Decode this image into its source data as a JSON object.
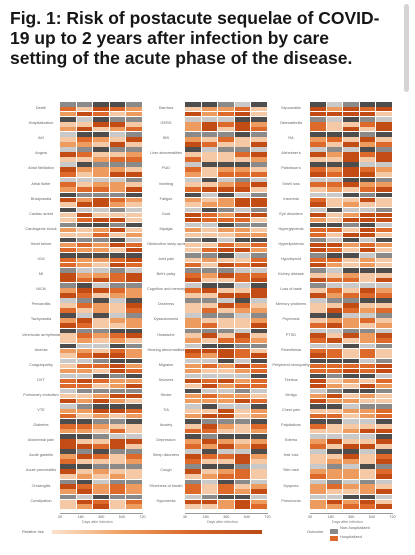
{
  "title": "Fig. 1: Risk of postacute sequelae of COVID-19 up to 2 years after infection by care setting of the acute phase of the disease.",
  "figure": {
    "row_labels": [
      [
        "Death",
        "Hospitalization",
        "AKI",
        "Angina",
        "Atrial fibrillation",
        "Atrial flutter",
        "Bradycardia",
        "Cardiac arrest",
        "Cardiogenic shock",
        "Heart failure",
        "ICM",
        "MI",
        "NICM",
        "Pericarditis",
        "Tachycardia",
        "Ventricular arrhythmias",
        "Anemia",
        "Coagulopathy",
        "DVT",
        "Pulmonary embolism",
        "VTE",
        "Diabetes",
        "Abdominal pain",
        "Acute gastritis",
        "Acute pancreatitis",
        "Cholangitis",
        "Constipation"
      ],
      [
        "Diarrhea",
        "GERD",
        "IBS",
        "Liver abnormalities",
        "PUD",
        "Vomiting",
        "Fatigue",
        "Gout",
        "Myalgia",
        "Obstructive sleep apnea",
        "Joint pain",
        "Bell's palsy",
        "Cognition and memory",
        "Dizziness",
        "Dysautonomia",
        "Headache",
        "Hearing abnormalities",
        "Migraine",
        "Seizures",
        "Stroke",
        "TIA",
        "Anxiety",
        "Depression",
        "Sleep disorders",
        "Cough",
        "Shortness of breath",
        "Hypoxemia"
      ],
      [
        "Myocarditis",
        "Osteoarthritis",
        "RA",
        "Alzheimer's",
        "Parkinson's",
        "Smell loss",
        "Insomnia",
        "Eye disorders",
        "Hyperglycemia",
        "Hyperlipidemia",
        "Hypothyroid",
        "Kidney disease",
        "Loss of taste",
        "Memory problems",
        "Psychosis",
        "PTSD",
        "Paresthesia",
        "Peripheral neuropathy",
        "Tinnitus",
        "Vertigo",
        "Chest pain",
        "Palpitations",
        "Edema",
        "Hair loss",
        "Skin rash",
        "Dyspnea",
        "Pneumonia"
      ]
    ],
    "axis_title": "Days after infection",
    "axis_ticks": [
      "30",
      "180",
      "360",
      "540",
      "720"
    ],
    "legend": {
      "label": "Relative risk",
      "ticks": [
        "0",
        "0.5",
        "1",
        "1.5",
        "2",
        "2.5",
        "3"
      ],
      "care_settings": [
        "Non-hospitalized",
        "Hospitalized"
      ],
      "care_setting_title": "Outcome"
    },
    "colors": {
      "dark": "#4d4d4d",
      "mid": "#8a8a8a",
      "light": "#c9c9c9",
      "orange1": "#f6c9a6",
      "orange2": "#ee9b5f",
      "orange3": "#dd6a2a",
      "orange4": "#c24c14"
    }
  }
}
